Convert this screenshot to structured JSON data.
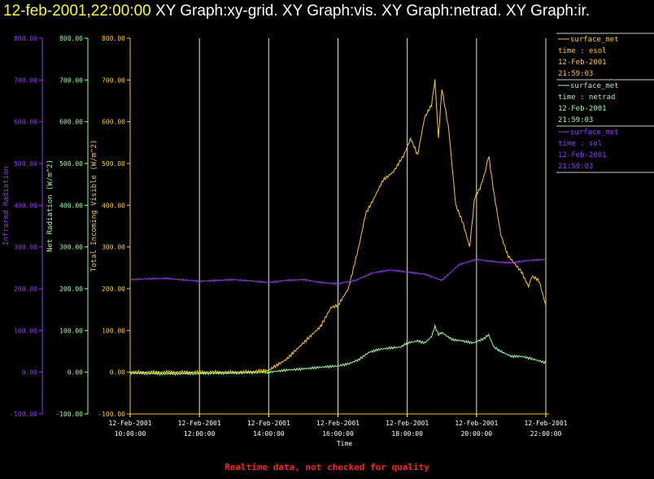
{
  "header": {
    "timestamp": "12-feb-2001,22:00:00",
    "graphs": "XY Graph:xy-grid.  XY Graph:vis.  XY Graph:netrad.  XY Graph:ir."
  },
  "footer": {
    "notice": "Realtime data, not checked for quality"
  },
  "colors": {
    "ir": "#9933ff",
    "netrad": "#99ff99",
    "vis": "#ffcc00",
    "grid": "#ffffff"
  },
  "chart_data": {
    "type": "line",
    "xlabel": "Time",
    "x_ticks": [
      {
        "date": "12-Feb-2001",
        "time": "10:00:00"
      },
      {
        "date": "12-Feb-2001",
        "time": "12:00:00"
      },
      {
        "date": "12-Feb-2001",
        "time": "14:00:00"
      },
      {
        "date": "12-Feb-2001",
        "time": "16:00:00"
      },
      {
        "date": "12-Feb-2001",
        "time": "18:00:00"
      },
      {
        "date": "12-Feb-2001",
        "time": "20:00:00"
      },
      {
        "date": "12-Feb-2001",
        "time": "22:00:00"
      }
    ],
    "x_hours": [
      10,
      12,
      14,
      16,
      18,
      20,
      22
    ],
    "xlim_hours": [
      10,
      22
    ],
    "grid": true,
    "legend_position": "right",
    "axes": [
      {
        "id": "ir",
        "label": "Infrared Radiation",
        "ylim": [
          -100,
          800
        ],
        "ticks": [
          "-100.00",
          "0.00",
          "100.00",
          "200.00",
          "300.00",
          "400.00",
          "500.00",
          "600.00",
          "700.00",
          "800.00"
        ]
      },
      {
        "id": "netrad",
        "label": "Net Radiation (W/m^2)",
        "ylim": [
          -100,
          800
        ],
        "ticks": [
          "-100.00",
          "0.00",
          "100.00",
          "200.00",
          "300.00",
          "400.00",
          "500.00",
          "600.00",
          "700.00",
          "800.00"
        ]
      },
      {
        "id": "vis",
        "label": "Total Incoming Visible (W/m^2)",
        "ylim": [
          -100,
          800
        ],
        "ticks": [
          "-100.00",
          "0.00",
          "100.00",
          "200.00",
          "300.00",
          "400.00",
          "500.00",
          "600.00",
          "700.00",
          "800.00"
        ]
      }
    ],
    "legend": [
      {
        "line": "surface_met",
        "var": "time : esol",
        "date": "12-Feb-2001",
        "time": "21:59:03",
        "axis": "vis"
      },
      {
        "line": "surface_met",
        "var": "time : netrad",
        "date": "12-Feb-2001",
        "time": "21:59:03",
        "axis": "netrad"
      },
      {
        "line": "surface_met",
        "var": "time : sol",
        "date": "12-Feb-2001",
        "time": "21:59:03",
        "axis": "ir"
      }
    ],
    "series": [
      {
        "axis": "vis",
        "noise": 4,
        "x": [
          10,
          11,
          12,
          13,
          13.5,
          14,
          14.5,
          15,
          15.5,
          15.8,
          16,
          16.3,
          16.6,
          16.8,
          17,
          17.3,
          17.6,
          17.9,
          18.1,
          18.3,
          18.5,
          18.7,
          18.8,
          18.9,
          19.0,
          19.2,
          19.4,
          19.6,
          19.7,
          19.8,
          19.95,
          20.1,
          20.25,
          20.35,
          20.5,
          20.7,
          20.9,
          21.1,
          21.3,
          21.5,
          21.6,
          21.8,
          22
        ],
        "y": [
          0,
          0,
          0,
          0,
          1,
          5,
          30,
          70,
          110,
          155,
          160,
          200,
          300,
          380,
          410,
          460,
          480,
          520,
          560,
          520,
          610,
          640,
          700,
          560,
          680,
          580,
          400,
          360,
          330,
          300,
          420,
          440,
          480,
          520,
          430,
          330,
          280,
          260,
          240,
          205,
          230,
          220,
          160
        ]
      },
      {
        "axis": "netrad",
        "noise": 3,
        "x": [
          10,
          11,
          12,
          13,
          14,
          14.5,
          15,
          15.5,
          16,
          16.3,
          16.6,
          16.9,
          17.2,
          17.5,
          17.8,
          18,
          18.3,
          18.5,
          18.7,
          18.8,
          18.9,
          19,
          19.3,
          19.6,
          19.9,
          20.2,
          20.35,
          20.5,
          20.7,
          21,
          21.3,
          21.6,
          21.9,
          22
        ],
        "y": [
          -2,
          -4,
          -3,
          -2,
          0,
          5,
          8,
          12,
          15,
          20,
          30,
          48,
          55,
          58,
          60,
          70,
          75,
          70,
          85,
          110,
          90,
          95,
          78,
          75,
          70,
          80,
          90,
          60,
          50,
          38,
          38,
          32,
          25,
          22
        ]
      },
      {
        "axis": "ir",
        "noise": 2,
        "x": [
          10,
          11,
          12,
          13,
          14,
          14.5,
          15,
          15.5,
          16,
          16.5,
          17,
          17.5,
          18,
          18.5,
          19,
          19.5,
          20,
          20.5,
          21,
          21.5,
          22
        ],
        "y": [
          222,
          225,
          218,
          222,
          215,
          220,
          222,
          215,
          212,
          220,
          238,
          245,
          240,
          235,
          220,
          258,
          270,
          265,
          262,
          268,
          270
        ]
      }
    ]
  }
}
